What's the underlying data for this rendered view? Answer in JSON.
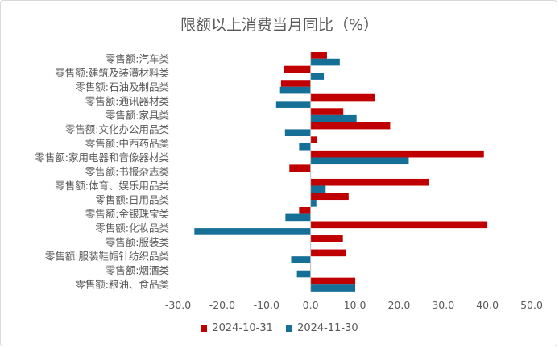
{
  "chart_data": {
    "type": "bar",
    "orientation": "horizontal",
    "title": "限额以上消费当月同比（%）",
    "categories": [
      "零售额:汽车类",
      "零售额:建筑及装潢材料类",
      "零售额:石油及制品类",
      "零售额:通讯器材类",
      "零售额:家具类",
      "零售额:文化办公用品类",
      "零售额:中西药品类",
      "零售额:家用电器和音像器材类",
      "零售额:书报杂志类",
      "零售额:体育、娱乐用品类",
      "零售额:日用品类",
      "零售额:金银珠宝类",
      "零售额:化妆品类",
      "零售额:服装类",
      "零售额:服装鞋帽针纺织品类",
      "零售额:烟酒类",
      "零售额:粮油、食品类"
    ],
    "series": [
      {
        "name": "2024-10-31",
        "color": "#c00000",
        "values": [
          3.7,
          -6.0,
          -6.7,
          14.5,
          7.4,
          18.0,
          1.4,
          39.2,
          -4.8,
          26.7,
          8.6,
          -2.6,
          40.0,
          7.3,
          8.0,
          0.0,
          10.1
        ]
      },
      {
        "name": "2024-11-30",
        "color": "#156f97",
        "values": [
          6.6,
          3.0,
          -7.1,
          -7.8,
          10.4,
          -5.8,
          -2.6,
          22.2,
          0.0,
          3.4,
          1.3,
          -5.7,
          -26.3,
          0.0,
          -4.4,
          -3.1,
          10.1
        ]
      }
    ],
    "xlim": [
      -30,
      50
    ],
    "xticks": [
      "-30.0",
      "-20.0",
      "-10.0",
      "0.0",
      "10.0",
      "20.0",
      "30.0",
      "40.0",
      "50.0"
    ],
    "grid": false,
    "legend_position": "bottom"
  }
}
